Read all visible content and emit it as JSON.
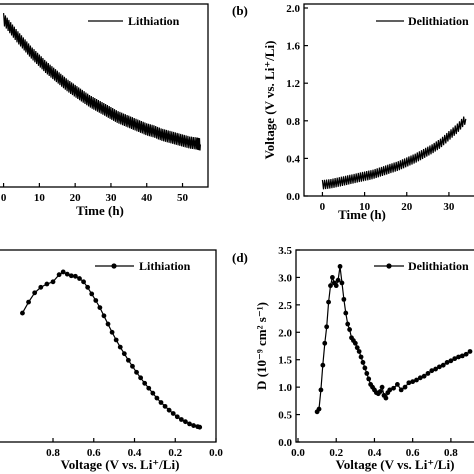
{
  "chart_data": [
    {
      "panel": "a",
      "type": "line",
      "xlabel": "Time (h)",
      "ylabel": "",
      "xlim": [
        -1,
        56
      ],
      "ylim": [
        0,
        1.8
      ],
      "xticks": [
        0,
        10,
        20,
        30,
        40,
        50
      ],
      "xtick_labels": [
        "0",
        "10",
        "20",
        "30",
        "40",
        "50"
      ],
      "grid": false,
      "legend_position": "top-right",
      "series": [
        {
          "name": "Lithiation",
          "oscillation": 0.12,
          "x": [
            0,
            2,
            4,
            6,
            8,
            10,
            12,
            14,
            16,
            18,
            20,
            22,
            24,
            26,
            28,
            30,
            32,
            34,
            36,
            38,
            40,
            42,
            44,
            46,
            48,
            50,
            52,
            54,
            55
          ],
          "y": [
            1.65,
            1.56,
            1.47,
            1.39,
            1.31,
            1.24,
            1.17,
            1.11,
            1.05,
            0.99,
            0.94,
            0.89,
            0.84,
            0.8,
            0.76,
            0.72,
            0.68,
            0.65,
            0.62,
            0.59,
            0.56,
            0.54,
            0.51,
            0.49,
            0.47,
            0.45,
            0.43,
            0.42,
            0.41
          ]
        }
      ]
    },
    {
      "panel": "b",
      "type": "line",
      "xlabel": "Time (h)",
      "ylabel": "Voltage (V vs. Li⁺/Li)",
      "xlim": [
        -2,
        35
      ],
      "ylim": [
        0,
        2.0
      ],
      "xticks": [
        0,
        10,
        20,
        30
      ],
      "xtick_labels": [
        "0",
        "10",
        "20",
        "30"
      ],
      "yticks": [
        0.0,
        0.4,
        0.8,
        1.2,
        1.6,
        2.0
      ],
      "ytick_labels": [
        "0.0",
        "0.4",
        "0.8",
        "1.2",
        "1.6",
        "2.0"
      ],
      "grid": false,
      "legend_position": "top-right",
      "series": [
        {
          "name": "Delithiation",
          "oscillation": 0.1,
          "x": [
            0,
            2,
            4,
            6,
            8,
            10,
            12,
            14,
            16,
            18,
            20,
            22,
            24,
            26,
            28,
            30,
            32,
            34
          ],
          "y": [
            0.12,
            0.13,
            0.15,
            0.17,
            0.19,
            0.21,
            0.23,
            0.26,
            0.29,
            0.32,
            0.36,
            0.4,
            0.45,
            0.5,
            0.56,
            0.64,
            0.72,
            0.82
          ]
        }
      ]
    },
    {
      "panel": "c",
      "type": "line",
      "xlabel": "Voltage (V vs. Li⁺/Li)",
      "ylabel": "",
      "xlim": [
        1.07,
        0.0
      ],
      "ylim": [
        0,
        3.5
      ],
      "xticks": [
        0.8,
        0.6,
        0.4,
        0.2,
        0.0
      ],
      "xtick_labels": [
        "0.8",
        "0.6",
        "0.4",
        "0.2",
        "0.0"
      ],
      "grid": false,
      "legend_position": "top-right",
      "series": [
        {
          "name": "Lithiation",
          "x": [
            0.95,
            0.92,
            0.89,
            0.86,
            0.83,
            0.8,
            0.77,
            0.75,
            0.73,
            0.71,
            0.69,
            0.67,
            0.65,
            0.63,
            0.61,
            0.59,
            0.57,
            0.55,
            0.53,
            0.51,
            0.49,
            0.47,
            0.45,
            0.43,
            0.41,
            0.39,
            0.37,
            0.35,
            0.33,
            0.31,
            0.29,
            0.27,
            0.25,
            0.23,
            0.21,
            0.19,
            0.17,
            0.15,
            0.13,
            0.11,
            0.09,
            0.08
          ],
          "y": [
            2.35,
            2.55,
            2.72,
            2.82,
            2.88,
            2.92,
            3.05,
            3.1,
            3.06,
            3.03,
            3.02,
            2.98,
            2.92,
            2.82,
            2.7,
            2.58,
            2.45,
            2.3,
            2.15,
            2.0,
            1.86,
            1.73,
            1.61,
            1.49,
            1.38,
            1.27,
            1.17,
            1.07,
            0.98,
            0.89,
            0.8,
            0.72,
            0.65,
            0.58,
            0.52,
            0.46,
            0.41,
            0.37,
            0.33,
            0.3,
            0.28,
            0.27
          ]
        }
      ]
    },
    {
      "panel": "d",
      "type": "line",
      "xlabel": "Voltage (V vs. Li⁺/Li)",
      "ylabel": "D (10⁻⁹ cm² s⁻¹)",
      "xlim": [
        0.0,
        0.9
      ],
      "ylim": [
        0,
        3.5
      ],
      "xticks": [
        0.0,
        0.2,
        0.4,
        0.6,
        0.8
      ],
      "xtick_labels": [
        "0.0",
        "0.2",
        "0.4",
        "0.6",
        "0.8"
      ],
      "yticks": [
        0.0,
        0.5,
        1.0,
        1.5,
        2.0,
        2.5,
        3.0,
        3.5
      ],
      "ytick_labels": [
        "0.0",
        "0.5",
        "1.0",
        "1.5",
        "2.0",
        "2.5",
        "3.0",
        "3.5"
      ],
      "grid": false,
      "legend_position": "top-right",
      "series": [
        {
          "name": "Delithiation",
          "x": [
            0.1,
            0.11,
            0.12,
            0.13,
            0.14,
            0.15,
            0.16,
            0.17,
            0.18,
            0.19,
            0.2,
            0.21,
            0.22,
            0.23,
            0.24,
            0.25,
            0.26,
            0.27,
            0.28,
            0.29,
            0.3,
            0.31,
            0.32,
            0.33,
            0.34,
            0.35,
            0.36,
            0.37,
            0.38,
            0.39,
            0.4,
            0.41,
            0.42,
            0.43,
            0.44,
            0.45,
            0.46,
            0.47,
            0.48,
            0.5,
            0.52,
            0.54,
            0.56,
            0.58,
            0.6,
            0.62,
            0.64,
            0.66,
            0.68,
            0.7,
            0.72,
            0.74,
            0.76,
            0.78,
            0.8,
            0.82,
            0.84,
            0.86,
            0.88,
            0.9
          ],
          "y": [
            0.55,
            0.6,
            0.95,
            1.4,
            1.8,
            2.1,
            2.55,
            2.85,
            3.0,
            2.9,
            2.85,
            2.95,
            3.2,
            2.9,
            2.6,
            2.35,
            2.15,
            2.05,
            1.9,
            1.85,
            1.8,
            1.72,
            1.65,
            1.55,
            1.45,
            1.35,
            1.25,
            1.15,
            1.05,
            1.0,
            0.95,
            0.9,
            0.88,
            0.92,
            1.0,
            0.85,
            0.8,
            0.9,
            0.95,
            0.98,
            1.05,
            0.95,
            1.0,
            1.08,
            1.1,
            1.13,
            1.17,
            1.2,
            1.25,
            1.3,
            1.33,
            1.37,
            1.4,
            1.45,
            1.48,
            1.52,
            1.55,
            1.57,
            1.6,
            1.65
          ]
        }
      ]
    }
  ],
  "panel_letters": {
    "b": "(b)",
    "d": "(d)"
  }
}
